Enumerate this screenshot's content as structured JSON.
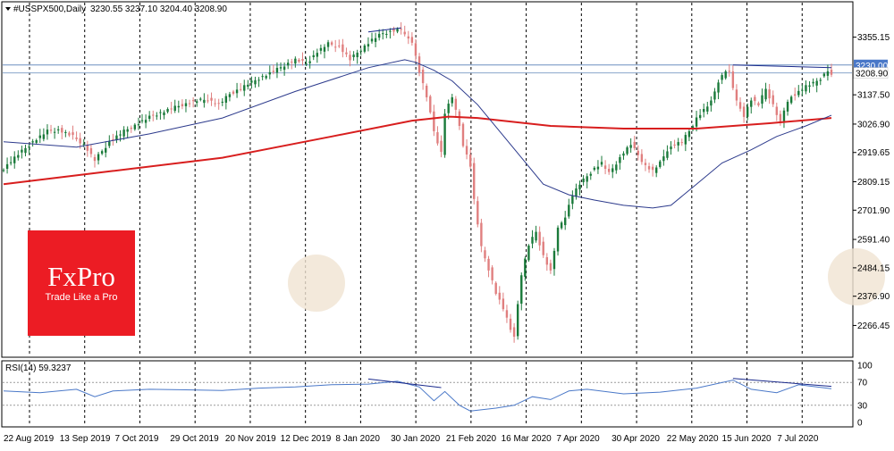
{
  "chart_data": {
    "type": "candlestick",
    "title": "#USSPX500,Daily",
    "ohlc_text": "3230.55 3237.10 3204.40 3208.90",
    "price_axis": {
      "ticks": [
        "3355.15",
        "3137.50",
        "3026.90",
        "2919.65",
        "2809.15",
        "2701.90",
        "2591.40",
        "2484.15",
        "2376.90",
        "2266.45"
      ],
      "tick_values": [
        3355.15,
        3137.5,
        3026.9,
        2919.65,
        2809.15,
        2701.9,
        2591.4,
        2484.15,
        2376.9,
        2266.45
      ],
      "range": [
        2160,
        3455
      ],
      "current_price": "3230.00",
      "bid_price": "3208.90"
    },
    "x_axis": {
      "labels": [
        "22 Aug 2019",
        "13 Sep 2019",
        "7 Oct 2019",
        "29 Oct 2019",
        "20 Nov 2019",
        "12 Dec 2019",
        "8 Jan 2020",
        "30 Jan 2020",
        "21 Feb 2020",
        "16 Mar 2020",
        "7 Apr 2020",
        "30 Apr 2020",
        "22 May 2020",
        "15 Jun 2020",
        "7 Jul 2020"
      ],
      "vertical_grid": true
    },
    "price_path": [
      [
        0,
        2860
      ],
      [
        3,
        2900
      ],
      [
        8,
        2960
      ],
      [
        12,
        3000
      ],
      [
        15,
        3005
      ],
      [
        19,
        2980
      ],
      [
        22,
        2950
      ],
      [
        25,
        2890
      ],
      [
        29,
        2960
      ],
      [
        33,
        3000
      ],
      [
        37,
        3030
      ],
      [
        41,
        3060
      ],
      [
        45,
        3080
      ],
      [
        49,
        3100
      ],
      [
        53,
        3115
      ],
      [
        56,
        3120
      ],
      [
        59,
        3100
      ],
      [
        62,
        3140
      ],
      [
        66,
        3170
      ],
      [
        70,
        3200
      ],
      [
        74,
        3225
      ],
      [
        77,
        3250
      ],
      [
        80,
        3270
      ],
      [
        83,
        3255
      ],
      [
        86,
        3300
      ],
      [
        89,
        3330
      ],
      [
        92,
        3320
      ],
      [
        95,
        3270
      ],
      [
        98,
        3310
      ],
      [
        101,
        3345
      ],
      [
        104,
        3370
      ],
      [
        107,
        3380
      ],
      [
        109,
        3385
      ],
      [
        110,
        3360
      ],
      [
        112,
        3340
      ],
      [
        114,
        3225
      ],
      [
        116,
        3130
      ],
      [
        118,
        3000
      ],
      [
        120,
        2920
      ],
      [
        121,
        3070
      ],
      [
        123,
        3130
      ],
      [
        125,
        3020
      ],
      [
        126,
        2950
      ],
      [
        128,
        2870
      ],
      [
        129,
        2740
      ],
      [
        131,
        2560
      ],
      [
        133,
        2480
      ],
      [
        135,
        2390
      ],
      [
        137,
        2330
      ],
      [
        139,
        2250
      ],
      [
        140,
        2230
      ],
      [
        142,
        2460
      ],
      [
        144,
        2570
      ],
      [
        146,
        2620
      ],
      [
        148,
        2530
      ],
      [
        150,
        2470
      ],
      [
        152,
        2630
      ],
      [
        154,
        2680
      ],
      [
        156,
        2760
      ],
      [
        158,
        2800
      ],
      [
        160,
        2830
      ],
      [
        162,
        2860
      ],
      [
        164,
        2880
      ],
      [
        166,
        2840
      ],
      [
        168,
        2880
      ],
      [
        170,
        2920
      ],
      [
        172,
        2950
      ],
      [
        174,
        2910
      ],
      [
        176,
        2870
      ],
      [
        178,
        2850
      ],
      [
        180,
        2880
      ],
      [
        182,
        2930
      ],
      [
        184,
        2950
      ],
      [
        186,
        2960
      ],
      [
        188,
        3000
      ],
      [
        190,
        3050
      ],
      [
        192,
        3080
      ],
      [
        194,
        3110
      ],
      [
        196,
        3190
      ],
      [
        198,
        3230
      ],
      [
        199,
        3220
      ],
      [
        201,
        3110
      ],
      [
        203,
        3060
      ],
      [
        205,
        3120
      ],
      [
        207,
        3100
      ],
      [
        209,
        3160
      ],
      [
        211,
        3100
      ],
      [
        213,
        3030
      ],
      [
        214,
        3080
      ],
      [
        216,
        3130
      ],
      [
        218,
        3150
      ],
      [
        220,
        3170
      ],
      [
        222,
        3180
      ],
      [
        224,
        3200
      ],
      [
        226,
        3230
      ],
      [
        227,
        3209
      ]
    ],
    "ma_fast_path": [
      [
        0,
        2960
      ],
      [
        20,
        2940
      ],
      [
        40,
        2990
      ],
      [
        60,
        3050
      ],
      [
        80,
        3150
      ],
      [
        100,
        3240
      ],
      [
        110,
        3270
      ],
      [
        113,
        3260
      ],
      [
        118,
        3230
      ],
      [
        123,
        3190
      ],
      [
        130,
        3100
      ],
      [
        136,
        3000
      ],
      [
        142,
        2900
      ],
      [
        148,
        2800
      ],
      [
        155,
        2760
      ],
      [
        162,
        2740
      ],
      [
        170,
        2720
      ],
      [
        178,
        2710
      ],
      [
        183,
        2720
      ],
      [
        190,
        2800
      ],
      [
        197,
        2880
      ],
      [
        205,
        2930
      ],
      [
        212,
        2980
      ],
      [
        220,
        3020
      ],
      [
        227,
        3060
      ]
    ],
    "ma_slow_path": [
      [
        0,
        2800
      ],
      [
        30,
        2850
      ],
      [
        60,
        2900
      ],
      [
        90,
        2980
      ],
      [
        112,
        3040
      ],
      [
        122,
        3055
      ],
      [
        130,
        3050
      ],
      [
        150,
        3020
      ],
      [
        170,
        3010
      ],
      [
        190,
        3010
      ],
      [
        210,
        3030
      ],
      [
        227,
        3050
      ]
    ],
    "trend_lines": [
      [
        [
          100,
          3375
        ],
        [
          109,
          3390
        ]
      ],
      [
        [
          200,
          3250
        ],
        [
          227,
          3240
        ]
      ]
    ],
    "rsi": {
      "label": "RSI(14) 59.3237",
      "period": 14,
      "value": 59.3237,
      "levels": [
        "100",
        "70",
        "30",
        "0"
      ],
      "level_values": [
        100,
        70,
        30,
        0
      ],
      "path": [
        [
          0,
          55
        ],
        [
          10,
          52
        ],
        [
          20,
          58
        ],
        [
          25,
          45
        ],
        [
          30,
          55
        ],
        [
          40,
          58
        ],
        [
          50,
          57
        ],
        [
          60,
          56
        ],
        [
          70,
          60
        ],
        [
          80,
          62
        ],
        [
          90,
          66
        ],
        [
          100,
          67
        ],
        [
          108,
          72
        ],
        [
          114,
          62
        ],
        [
          118,
          38
        ],
        [
          121,
          54
        ],
        [
          125,
          30
        ],
        [
          128,
          20
        ],
        [
          135,
          25
        ],
        [
          140,
          30
        ],
        [
          145,
          45
        ],
        [
          150,
          40
        ],
        [
          155,
          55
        ],
        [
          160,
          58
        ],
        [
          170,
          50
        ],
        [
          180,
          53
        ],
        [
          190,
          60
        ],
        [
          200,
          74
        ],
        [
          205,
          58
        ],
        [
          212,
          52
        ],
        [
          218,
          66
        ],
        [
          227,
          59
        ]
      ],
      "divergence_lines": [
        [
          [
            100,
            76
          ],
          [
            120,
            61
          ]
        ],
        [
          [
            200,
            77
          ],
          [
            227,
            63
          ]
        ]
      ]
    },
    "colors": {
      "bull": "#1a7a3a",
      "bear": "#e07f7f",
      "ma_fast": "#2c3a8c",
      "ma_slow": "#d81e1e",
      "rsi": "#4a78c8",
      "trend": "#1a2a8c",
      "price_tag": "#4a78c8"
    }
  },
  "branding": {
    "logo_name": "FxPro",
    "logo_tagline": "Trade Like a Pro"
  }
}
